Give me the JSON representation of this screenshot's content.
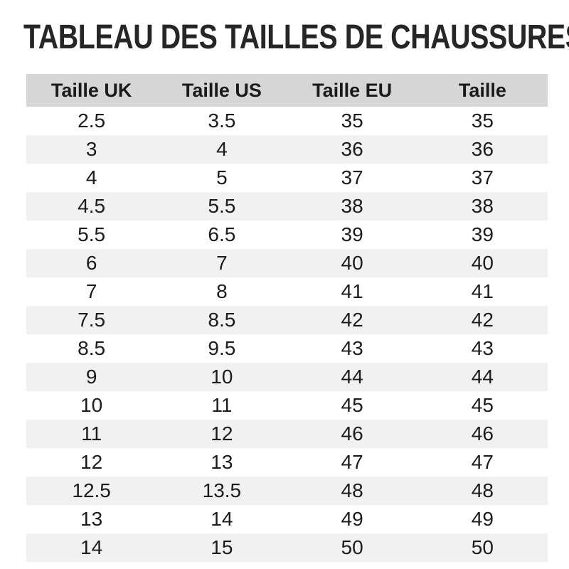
{
  "page": {
    "title": "TABLEAU DES TAILLES DE CHAUSSURES"
  },
  "colors": {
    "background": "#ffffff",
    "title_text": "#262626",
    "header_row_bg": "#d6d6d6",
    "stripe_row_bg": "#f1f1f1",
    "body_text": "#1c1c1c"
  },
  "chart_data": {
    "type": "table",
    "title": "TABLEAU DES TAILLES DE CHAUSSURES",
    "columns": [
      "Taille UK",
      "Taille US",
      "Taille EU",
      "Taille"
    ],
    "rows": [
      [
        "2.5",
        "3.5",
        "35",
        "35"
      ],
      [
        "3",
        "4",
        "36",
        "36"
      ],
      [
        "4",
        "5",
        "37",
        "37"
      ],
      [
        "4.5",
        "5.5",
        "38",
        "38"
      ],
      [
        "5.5",
        "6.5",
        "39",
        "39"
      ],
      [
        "6",
        "7",
        "40",
        "40"
      ],
      [
        "7",
        "8",
        "41",
        "41"
      ],
      [
        "7.5",
        "8.5",
        "42",
        "42"
      ],
      [
        "8.5",
        "9.5",
        "43",
        "43"
      ],
      [
        "9",
        "10",
        "44",
        "44"
      ],
      [
        "10",
        "11",
        "45",
        "45"
      ],
      [
        "11",
        "12",
        "46",
        "46"
      ],
      [
        "12",
        "13",
        "47",
        "47"
      ],
      [
        "12.5",
        "13.5",
        "48",
        "48"
      ],
      [
        "13",
        "14",
        "49",
        "49"
      ],
      [
        "14",
        "15",
        "50",
        "50"
      ]
    ],
    "layout_hints": {
      "row_striping": "alternating white / light grey, first body row white",
      "alignment": "all cells centered",
      "grid": "no cell borders, background shading only"
    }
  }
}
